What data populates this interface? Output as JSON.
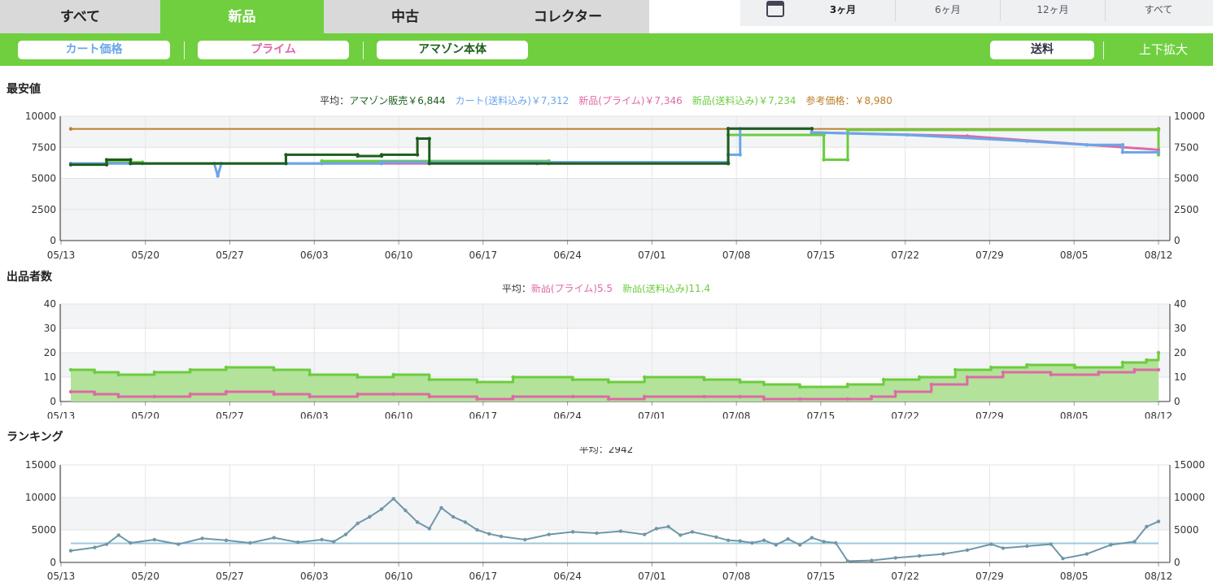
{
  "tabs": [
    "すべて",
    "新品",
    "中古",
    "コレクター"
  ],
  "periods": [
    "3ヶ月",
    "6ヶ月",
    "12ヶ月",
    "すべて"
  ],
  "toolbar": {
    "cart": "カート価格",
    "prime": "プライム",
    "amazon": "アマゾン本体",
    "shipping": "送料",
    "zoom": "上下拡大"
  },
  "colors": {
    "cart": "#6aa6e8",
    "prime": "#dd6aa6",
    "amazon": "#1c5e1c",
    "newship": "#6ccc3e",
    "ref": "#bc7f2a",
    "rank": "#6f97a8",
    "rankavg": "#9cc8dc",
    "green": "#6fcf3f"
  },
  "x_ticks": [
    "05/13",
    "05/20",
    "05/27",
    "06/03",
    "06/10",
    "06/17",
    "06/24",
    "07/01",
    "07/08",
    "07/15",
    "07/22",
    "07/29",
    "08/05",
    "08/12"
  ],
  "chart_data": [
    {
      "type": "line",
      "title": "最安値",
      "avg_label": "平均：",
      "legend": [
        "アマゾン販売￥6,844",
        "カート(送料込み)￥7,312",
        "新品(プライム)￥7,346",
        "新品(送料込み)￥7,234",
        "参考価格：￥8,980"
      ],
      "ylim": [
        0,
        10000
      ],
      "y_ticks": [
        "0",
        "2500",
        "5000",
        "7500",
        "10000"
      ],
      "x_range": [
        0,
        91
      ],
      "series": [
        {
          "name": "参考価格",
          "key": "ref",
          "points": [
            [
              0,
              8980
            ],
            [
              91,
              8980
            ]
          ]
        },
        {
          "name": "新品(送料込み)",
          "key": "newship",
          "points": [
            [
              0,
              6200
            ],
            [
              3,
              6200
            ],
            [
              3,
              6300
            ],
            [
              6,
              6300
            ],
            [
              6,
              6200
            ],
            [
              21,
              6200
            ],
            [
              21,
              6400
            ],
            [
              40,
              6400
            ],
            [
              40,
              6200
            ],
            [
              55,
              6200
            ],
            [
              55,
              8500
            ],
            [
              63,
              8500
            ],
            [
              63,
              6500
            ],
            [
              65,
              6500
            ],
            [
              65,
              8900
            ],
            [
              91,
              8900
            ],
            [
              91,
              6900
            ]
          ]
        },
        {
          "name": "新品(プライム)",
          "key": "prime",
          "points": [
            [
              0,
              6200
            ],
            [
              39,
              6200
            ],
            [
              55,
              6200
            ],
            [
              55,
              9000
            ],
            [
              62,
              9000
            ],
            [
              62,
              8700
            ],
            [
              75,
              8400
            ],
            [
              91,
              7300
            ]
          ]
        },
        {
          "name": "カート(送料込み)",
          "key": "cart",
          "points": [
            [
              0,
              6200
            ],
            [
              12,
              6200
            ],
            [
              12.3,
              5200
            ],
            [
              12.6,
              6200
            ],
            [
              26,
              6200
            ],
            [
              26,
              6300
            ],
            [
              55,
              6300
            ],
            [
              55,
              6900
            ],
            [
              56,
              6900
            ],
            [
              56,
              9000
            ],
            [
              62,
              9000
            ],
            [
              62,
              8700
            ],
            [
              70,
              8500
            ],
            [
              80,
              8000
            ],
            [
              85,
              7700
            ],
            [
              88,
              7700
            ],
            [
              88,
              7100
            ],
            [
              91,
              7100
            ]
          ]
        },
        {
          "name": "アマゾン販売",
          "key": "amazon",
          "points": [
            [
              0,
              6100
            ],
            [
              3,
              6100
            ],
            [
              3,
              6500
            ],
            [
              5,
              6500
            ],
            [
              5,
              6200
            ],
            [
              18,
              6200
            ],
            [
              18,
              6900
            ],
            [
              24,
              6900
            ],
            [
              24,
              6800
            ],
            [
              26,
              6800
            ],
            [
              26,
              6900
            ],
            [
              29,
              6900
            ],
            [
              29,
              8200
            ],
            [
              30,
              8200
            ],
            [
              30,
              6200
            ],
            [
              55,
              6200
            ],
            [
              55,
              9000
            ],
            [
              62,
              9000
            ]
          ]
        }
      ]
    },
    {
      "type": "area",
      "title": "出品者数",
      "avg_label": "平均：",
      "legend": [
        "新品(プライム)5.5",
        "新品(送料込み)11.4"
      ],
      "ylim": [
        0,
        40
      ],
      "y_ticks": [
        "0",
        "10",
        "20",
        "30",
        "40"
      ],
      "x_range": [
        0,
        91
      ],
      "series": [
        {
          "name": "新品(送料込み)",
          "key": "newship",
          "points": [
            [
              0,
              13
            ],
            [
              2,
              12
            ],
            [
              4,
              11
            ],
            [
              7,
              12
            ],
            [
              10,
              13
            ],
            [
              13,
              14
            ],
            [
              17,
              13
            ],
            [
              20,
              11
            ],
            [
              24,
              10
            ],
            [
              27,
              11
            ],
            [
              30,
              9
            ],
            [
              34,
              8
            ],
            [
              37,
              10
            ],
            [
              42,
              9
            ],
            [
              45,
              8
            ],
            [
              48,
              10
            ],
            [
              53,
              9
            ],
            [
              56,
              8
            ],
            [
              58,
              7
            ],
            [
              61,
              6
            ],
            [
              65,
              7
            ],
            [
              68,
              9
            ],
            [
              71,
              10
            ],
            [
              74,
              13
            ],
            [
              77,
              14
            ],
            [
              80,
              15
            ],
            [
              84,
              14
            ],
            [
              88,
              16
            ],
            [
              90,
              17
            ],
            [
              91,
              20
            ]
          ]
        },
        {
          "name": "新品(プライム)",
          "key": "prime",
          "points": [
            [
              0,
              4
            ],
            [
              2,
              3
            ],
            [
              4,
              2
            ],
            [
              7,
              2
            ],
            [
              10,
              3
            ],
            [
              13,
              4
            ],
            [
              17,
              3
            ],
            [
              20,
              2
            ],
            [
              24,
              3
            ],
            [
              27,
              3
            ],
            [
              30,
              2
            ],
            [
              34,
              1
            ],
            [
              37,
              2
            ],
            [
              42,
              2
            ],
            [
              45,
              1
            ],
            [
              48,
              2
            ],
            [
              53,
              2
            ],
            [
              56,
              2
            ],
            [
              58,
              1
            ],
            [
              61,
              1
            ],
            [
              65,
              1
            ],
            [
              67,
              2
            ],
            [
              69,
              4
            ],
            [
              72,
              7
            ],
            [
              75,
              10
            ],
            [
              78,
              12
            ],
            [
              82,
              11
            ],
            [
              86,
              12
            ],
            [
              89,
              13
            ],
            [
              91,
              13
            ]
          ]
        }
      ]
    },
    {
      "type": "line",
      "title": "ランキング",
      "avg_label": "平均：",
      "legend": [
        "2942"
      ],
      "ylim": [
        0,
        15000
      ],
      "y_ticks": [
        "0",
        "5000",
        "10000",
        "15000"
      ],
      "x_range": [
        0,
        91
      ],
      "avg": 2942,
      "series": [
        {
          "name": "ランキング",
          "key": "rank",
          "points": [
            [
              0,
              1800
            ],
            [
              2,
              2300
            ],
            [
              3,
              2800
            ],
            [
              4,
              4200
            ],
            [
              5,
              3000
            ],
            [
              7,
              3500
            ],
            [
              9,
              2800
            ],
            [
              11,
              3700
            ],
            [
              13,
              3400
            ],
            [
              15,
              3000
            ],
            [
              17,
              3800
            ],
            [
              19,
              3100
            ],
            [
              21,
              3500
            ],
            [
              22,
              3200
            ],
            [
              23,
              4300
            ],
            [
              24,
              6000
            ],
            [
              25,
              7000
            ],
            [
              26,
              8200
            ],
            [
              27,
              9800
            ],
            [
              28,
              8000
            ],
            [
              29,
              6200
            ],
            [
              30,
              5200
            ],
            [
              31,
              8400
            ],
            [
              32,
              7000
            ],
            [
              33,
              6200
            ],
            [
              34,
              5000
            ],
            [
              35,
              4400
            ],
            [
              36,
              4000
            ],
            [
              38,
              3500
            ],
            [
              40,
              4300
            ],
            [
              42,
              4700
            ],
            [
              44,
              4500
            ],
            [
              46,
              4800
            ],
            [
              48,
              4300
            ],
            [
              49,
              5200
            ],
            [
              50,
              5500
            ],
            [
              51,
              4200
            ],
            [
              52,
              4700
            ],
            [
              54,
              3900
            ],
            [
              55,
              3400
            ],
            [
              56,
              3300
            ],
            [
              57,
              3000
            ],
            [
              58,
              3400
            ],
            [
              59,
              2700
            ],
            [
              60,
              3600
            ],
            [
              61,
              2700
            ],
            [
              62,
              3800
            ],
            [
              63,
              3200
            ],
            [
              64,
              3000
            ],
            [
              65,
              200
            ],
            [
              67,
              300
            ],
            [
              69,
              700
            ],
            [
              71,
              1000
            ],
            [
              73,
              1300
            ],
            [
              75,
              1900
            ],
            [
              77,
              2800
            ],
            [
              78,
              2200
            ],
            [
              80,
              2500
            ],
            [
              82,
              2800
            ],
            [
              83,
              600
            ],
            [
              85,
              1300
            ],
            [
              87,
              2700
            ],
            [
              89,
              3200
            ],
            [
              90,
              5500
            ],
            [
              91,
              6300
            ]
          ]
        }
      ]
    }
  ]
}
